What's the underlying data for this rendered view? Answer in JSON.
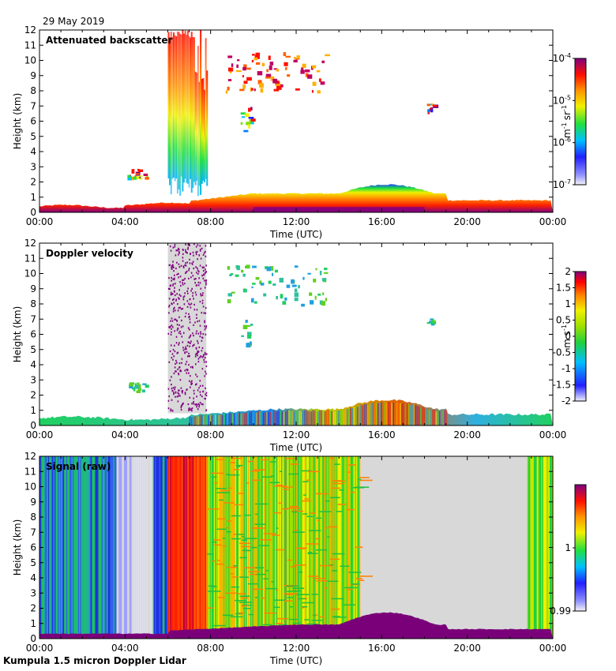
{
  "header": {
    "date": "29 May 2019"
  },
  "footer": {
    "instrument": "Kumpula 1.5 micron Doppler Lidar"
  },
  "colors": {
    "noise_gray": "#d8d8d8",
    "boundary_purple": "#7a007a",
    "low_blue": "#2020e0",
    "mid_green": "#20c020",
    "high_red": "#e02000"
  },
  "chart_data": [
    {
      "type": "heatmap",
      "title": "Attenuated backscatter",
      "xlabel": "Time (UTC)",
      "ylabel": "Height (km)",
      "x_ticks": [
        "00:00",
        "04:00",
        "08:00",
        "12:00",
        "16:00",
        "20:00",
        "00:00"
      ],
      "y_ticks": [
        "0",
        "1",
        "2",
        "3",
        "4",
        "5",
        "6",
        "7",
        "8",
        "9",
        "10",
        "11",
        "12"
      ],
      "xlim_hours": [
        0,
        24
      ],
      "ylim_km": [
        0,
        12
      ],
      "colorbar": {
        "scale": "log",
        "unit": "m-1 sr-1",
        "tick_labels": [
          "10-4",
          "10-5",
          "10-6",
          "10-7"
        ],
        "unit_parts": [
          "m",
          "-1",
          "sr",
          "-1"
        ]
      },
      "features": [
        {
          "kind": "boundary_layer",
          "description": "aerosol layer 0–1.8 km",
          "start_h": 0,
          "end_h": 24,
          "peak_km": 1.8
        },
        {
          "kind": "precipitation_column",
          "start_h": 6.0,
          "end_h": 7.8,
          "top_km": 12
        },
        {
          "kind": "cloud",
          "start_h": 4.1,
          "end_h": 5.0,
          "base_km": 2.3,
          "top_km": 2.9
        },
        {
          "kind": "cloud",
          "start_h": 9.4,
          "end_h": 9.9,
          "base_km": 5.3,
          "top_km": 7.0
        },
        {
          "kind": "cloud",
          "start_h": 8.7,
          "end_h": 13.5,
          "base_km": 8.0,
          "top_km": 10.6
        },
        {
          "kind": "cloud",
          "start_h": 18.1,
          "end_h": 18.4,
          "base_km": 6.7,
          "top_km": 7.2
        }
      ]
    },
    {
      "type": "heatmap",
      "title": "Doppler velocity",
      "xlabel": "Time (UTC)",
      "ylabel": "Height (km)",
      "x_ticks": [
        "00:00",
        "04:00",
        "08:00",
        "12:00",
        "16:00",
        "20:00",
        "00:00"
      ],
      "y_ticks": [
        "0",
        "1",
        "2",
        "3",
        "4",
        "5",
        "6",
        "7",
        "8",
        "9",
        "10",
        "11",
        "12"
      ],
      "xlim_hours": [
        0,
        24
      ],
      "ylim_km": [
        0,
        12
      ],
      "colorbar": {
        "scale": "linear",
        "unit": "m s-1",
        "tick_labels": [
          "2",
          "1.5",
          "1",
          "0.5",
          "0",
          "-0.5",
          "-1",
          "-1.5",
          "-2"
        ],
        "vmin": -2,
        "vmax": 2,
        "unit_parts": [
          "m s",
          "-1"
        ]
      }
    },
    {
      "type": "heatmap",
      "title": "Signal (raw)",
      "xlabel": "Time (UTC)",
      "ylabel": "Height (km)",
      "x_ticks": [
        "00:00",
        "04:00",
        "08:00",
        "12:00",
        "16:00",
        "20:00",
        "00:00"
      ],
      "y_ticks": [
        "0",
        "1",
        "2",
        "3",
        "4",
        "5",
        "6",
        "7",
        "8",
        "9",
        "10",
        "11",
        "12"
      ],
      "xlim_hours": [
        0,
        24
      ],
      "ylim_km": [
        0,
        12
      ],
      "colorbar": {
        "scale": "linear",
        "unit": "",
        "tick_labels": [
          "1",
          "0.99"
        ],
        "vmin": 0.99,
        "vmax": 1.01
      }
    }
  ]
}
